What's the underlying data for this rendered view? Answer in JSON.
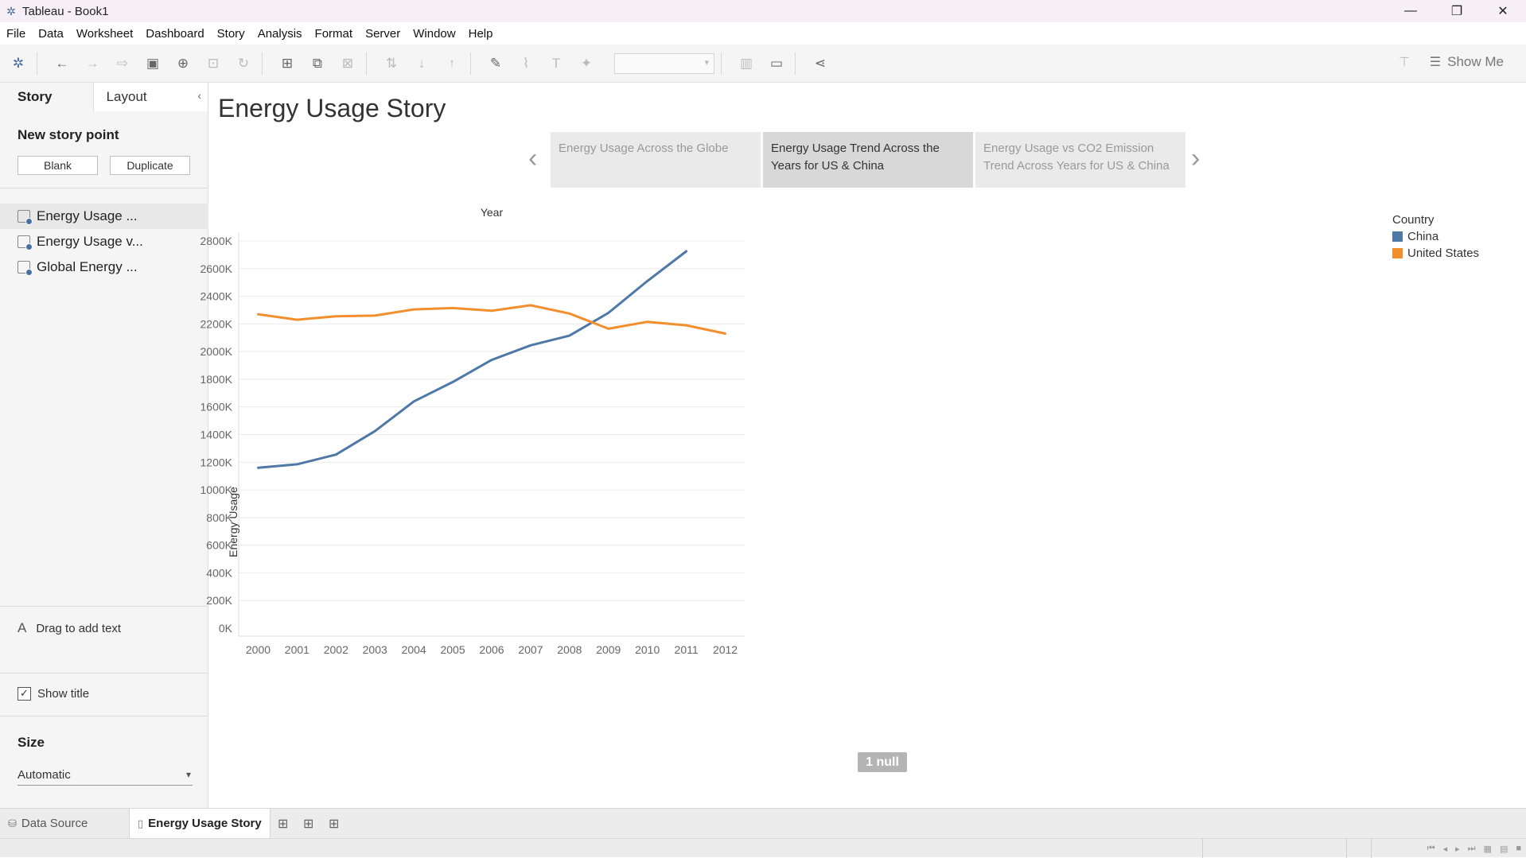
{
  "window": {
    "title": "Tableau - Book1",
    "minimize": "—",
    "restore": "❐",
    "close": "✕"
  },
  "menu": [
    "File",
    "Data",
    "Worksheet",
    "Dashboard",
    "Story",
    "Analysis",
    "Format",
    "Server",
    "Window",
    "Help"
  ],
  "toolbar": {
    "show_me": "Show Me"
  },
  "left_panel": {
    "tabs": {
      "story": "Story",
      "layout": "Layout"
    },
    "new_story_point": "New story point",
    "blank_button": "Blank",
    "duplicate_button": "Duplicate",
    "sheets": [
      "Energy Usage ...",
      "Energy Usage v...",
      "Global Energy ..."
    ],
    "drag_text": "Drag to add text",
    "show_title": "Show title",
    "size_title": "Size",
    "size_value": "Automatic"
  },
  "story": {
    "title": "Energy Usage Story",
    "points": [
      {
        "line1": "Energy Usage Across the Globe",
        "line2": ""
      },
      {
        "line1": "Energy Usage Trend Across the",
        "line2": "Years for US & China"
      },
      {
        "line1": "Energy Usage vs CO2 Emission",
        "line2": "Trend Across Years for US & China"
      }
    ]
  },
  "chart_data": {
    "type": "line",
    "title": "",
    "xlabel": "Year",
    "ylabel": "Energy Usage",
    "x": [
      "2000",
      "2001",
      "2002",
      "2003",
      "2004",
      "2005",
      "2006",
      "2007",
      "2008",
      "2009",
      "2010",
      "2011",
      "2012"
    ],
    "yticks": [
      "0K",
      "200K",
      "400K",
      "600K",
      "800K",
      "1000K",
      "1200K",
      "1400K",
      "1600K",
      "1800K",
      "2000K",
      "2200K",
      "2400K",
      "2600K",
      "2800K"
    ],
    "ylim": [
      0,
      2800000
    ],
    "series": [
      {
        "name": "China",
        "color": "#4e79a7",
        "values": [
          1160000,
          1185000,
          1255000,
          1425000,
          1640000,
          1780000,
          1940000,
          2045000,
          2115000,
          2280000,
          2510000,
          2725000,
          null
        ]
      },
      {
        "name": "United States",
        "color": "#f28e2b",
        "values": [
          2270000,
          2230000,
          2255000,
          2260000,
          2305000,
          2315000,
          2295000,
          2335000,
          2275000,
          2165000,
          2215000,
          2190000,
          2130000
        ]
      }
    ],
    "legend_title": "Country",
    "legend_position": "right",
    "null_indicator": "1 null",
    "grid": true
  },
  "sheet_tabs": {
    "data_source": "Data Source",
    "story": "Energy Usage Story"
  }
}
